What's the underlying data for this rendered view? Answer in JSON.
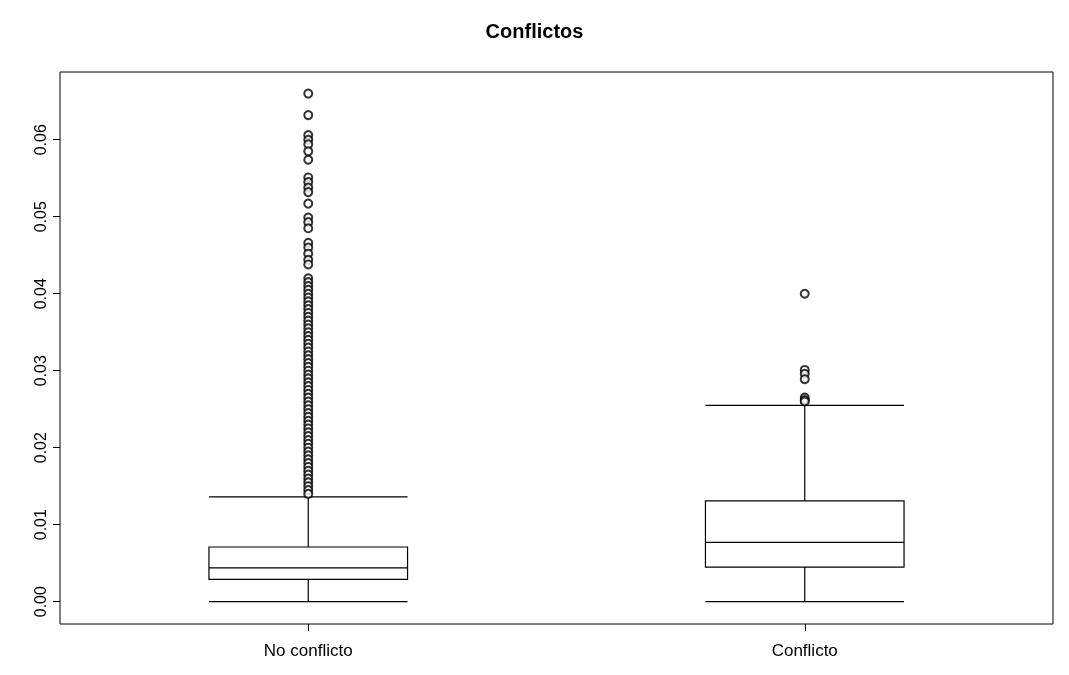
{
  "chart_data": {
    "type": "box",
    "title": "Conflictos",
    "categories": [
      "No conflicto",
      "Conflicto"
    ],
    "boxes": [
      {
        "low": 0.0,
        "q1": 0.0029,
        "median": 0.0044,
        "q3": 0.0071,
        "high": 0.0136,
        "outliers": [
          0.066,
          0.0632,
          0.0606,
          0.06,
          0.0594,
          0.0585,
          0.0574,
          0.0551,
          0.0545,
          0.0538,
          0.0532,
          0.0517,
          0.0499,
          0.0493,
          0.0485,
          0.0466,
          0.046,
          0.0452,
          0.0444,
          0.0438,
          0.042,
          0.0415,
          0.041,
          0.0405,
          0.04,
          0.0395,
          0.039,
          0.0385,
          0.038,
          0.0375,
          0.037,
          0.0365,
          0.036,
          0.0355,
          0.035,
          0.0345,
          0.034,
          0.0335,
          0.033,
          0.0325,
          0.032,
          0.0315,
          0.031,
          0.0305,
          0.03,
          0.0295,
          0.029,
          0.0285,
          0.028,
          0.0275,
          0.027,
          0.0265,
          0.026,
          0.0255,
          0.025,
          0.0245,
          0.024,
          0.0235,
          0.023,
          0.0225,
          0.022,
          0.0215,
          0.021,
          0.0205,
          0.02,
          0.0195,
          0.019,
          0.0185,
          0.018,
          0.0175,
          0.017,
          0.0165,
          0.016,
          0.0155,
          0.015,
          0.0145,
          0.014
        ]
      },
      {
        "low": 0.0,
        "q1": 0.0045,
        "median": 0.0077,
        "q3": 0.0131,
        "high": 0.0255,
        "outliers": [
          0.04,
          0.0301,
          0.0296,
          0.0289,
          0.0265,
          0.0262,
          0.026
        ]
      }
    ],
    "ylim": [
      -0.0029,
      0.0688
    ],
    "yticks": [
      {
        "value": 0,
        "label": "0.00"
      },
      0.01,
      0.02,
      0.03,
      0.04,
      0.05,
      0.06
    ],
    "grid": false,
    "color": "#000000"
  }
}
